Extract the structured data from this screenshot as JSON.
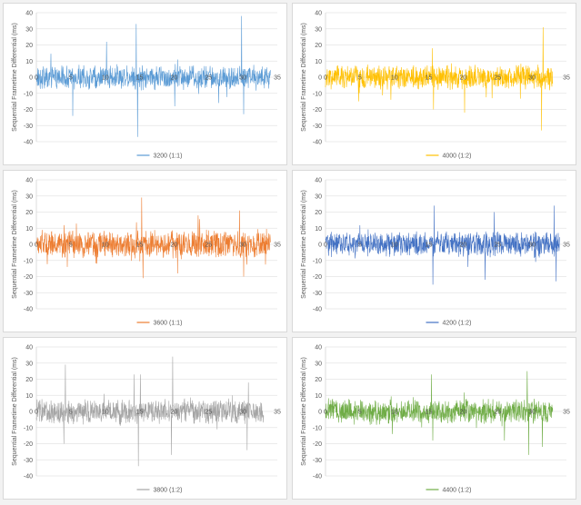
{
  "chart_data": [
    {
      "type": "line",
      "ylabel": "Sequential Frametime Differential (ms)",
      "xlim": [
        0,
        35
      ],
      "ylim": [
        -40,
        40
      ],
      "xticks": [
        0,
        5,
        10,
        15,
        20,
        25,
        30,
        35
      ],
      "yticks": [
        40,
        30,
        20,
        10,
        0,
        -10,
        -20,
        -30,
        -40
      ],
      "grid": "horizontal",
      "legend_position": "bottom",
      "x_end": 34,
      "series": [
        {
          "name": "3200 (1:1)",
          "color": "#5b9bd5",
          "amplitude": 7,
          "spikes": [
            [
              5.3,
              -24
            ],
            [
              10.2,
              22
            ],
            [
              14.5,
              33
            ],
            [
              14.7,
              -37
            ],
            [
              20.1,
              -18
            ],
            [
              29.8,
              38
            ],
            [
              30.1,
              -23
            ],
            [
              26.5,
              -16
            ]
          ]
        }
      ]
    },
    {
      "type": "line",
      "ylabel": "Sequential Frametime Differential (ms)",
      "xlim": [
        0,
        35
      ],
      "ylim": [
        -40,
        40
      ],
      "xticks": [
        0,
        5,
        10,
        15,
        20,
        25,
        30,
        35
      ],
      "yticks": [
        40,
        30,
        20,
        10,
        0,
        -10,
        -20,
        -30,
        -40
      ],
      "grid": "horizontal",
      "legend_position": "bottom",
      "x_end": 33,
      "series": [
        {
          "name": "4000 (1:2)",
          "color": "#ffc000",
          "amplitude": 7,
          "spikes": [
            [
              15.5,
              18
            ],
            [
              15.7,
              -20
            ],
            [
              20.2,
              -22
            ],
            [
              31.6,
              31
            ],
            [
              31.4,
              -33
            ],
            [
              4.8,
              -15
            ],
            [
              9.5,
              -14
            ],
            [
              24.2,
              -13
            ]
          ]
        }
      ]
    },
    {
      "type": "line",
      "ylabel": "Sequential Frametime Differential (ms)",
      "xlim": [
        0,
        35
      ],
      "ylim": [
        -40,
        40
      ],
      "xticks": [
        0,
        5,
        10,
        15,
        20,
        25,
        30,
        35
      ],
      "yticks": [
        40,
        30,
        20,
        10,
        0,
        -10,
        -20,
        -30,
        -40
      ],
      "grid": "horizontal",
      "legend_position": "bottom",
      "x_end": 34,
      "series": [
        {
          "name": "3600 (1:1)",
          "color": "#ed7d31",
          "amplitude": 8,
          "spikes": [
            [
              15.3,
              29
            ],
            [
              15.5,
              -21
            ],
            [
              20.5,
              -18
            ],
            [
              23.5,
              18
            ],
            [
              29.5,
              21
            ],
            [
              30.1,
              -20
            ],
            [
              4.5,
              -14
            ]
          ]
        }
      ]
    },
    {
      "type": "line",
      "ylabel": "Sequential Frametime Differential (ms)",
      "xlim": [
        0,
        35
      ],
      "ylim": [
        -40,
        40
      ],
      "xticks": [
        0,
        5,
        10,
        15,
        20,
        25,
        30,
        35
      ],
      "yticks": [
        40,
        30,
        20,
        10,
        0,
        -10,
        -20,
        -30,
        -40
      ],
      "grid": "horizontal",
      "legend_position": "bottom",
      "x_end": 34,
      "series": [
        {
          "name": "4200 (1:2)",
          "color": "#4472c4",
          "amplitude": 7,
          "spikes": [
            [
              15.6,
              -25
            ],
            [
              15.8,
              24
            ],
            [
              23.2,
              -22
            ],
            [
              33.5,
              -23
            ],
            [
              33.2,
              24
            ],
            [
              24.5,
              20
            ],
            [
              20.7,
              -14
            ]
          ]
        }
      ]
    },
    {
      "type": "line",
      "ylabel": "Sequential Frametime Differential (ms)",
      "xlim": [
        0,
        35
      ],
      "ylim": [
        -40,
        40
      ],
      "xticks": [
        0,
        5,
        10,
        15,
        20,
        25,
        30,
        35
      ],
      "yticks": [
        40,
        30,
        20,
        10,
        0,
        -10,
        -20,
        -30,
        -40
      ],
      "grid": "horizontal",
      "legend_position": "bottom",
      "x_end": 33,
      "series": [
        {
          "name": "3800 (1:2)",
          "color": "#a5a5a5",
          "amplitude": 7,
          "spikes": [
            [
              4.0,
              -20
            ],
            [
              4.2,
              29
            ],
            [
              14.2,
              23
            ],
            [
              14.8,
              -34
            ],
            [
              15.1,
              23
            ],
            [
              19.8,
              34
            ],
            [
              19.6,
              -27
            ],
            [
              30.6,
              -24
            ],
            [
              30.8,
              18
            ]
          ]
        }
      ]
    },
    {
      "type": "line",
      "ylabel": "Sequential Frametime Differential (ms)",
      "xlim": [
        0,
        35
      ],
      "ylim": [
        -40,
        40
      ],
      "xticks": [
        0,
        5,
        10,
        15,
        20,
        25,
        30,
        35
      ],
      "yticks": [
        40,
        30,
        20,
        10,
        0,
        -10,
        -20,
        -30,
        -40
      ],
      "grid": "horizontal",
      "legend_position": "bottom",
      "x_end": 33,
      "series": [
        {
          "name": "4400 (1:2)",
          "color": "#70ad47",
          "amplitude": 7,
          "spikes": [
            [
              15.4,
              23
            ],
            [
              15.6,
              -18
            ],
            [
              26.0,
              -18
            ],
            [
              29.3,
              25
            ],
            [
              29.5,
              -27
            ],
            [
              9.7,
              -14
            ],
            [
              31.5,
              -22
            ]
          ]
        }
      ]
    }
  ]
}
